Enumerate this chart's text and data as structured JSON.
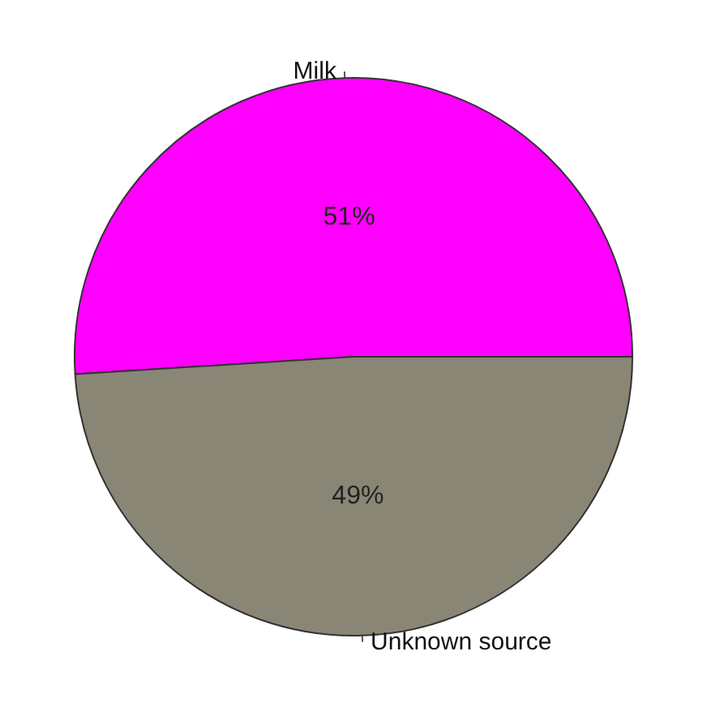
{
  "chart_data": {
    "type": "pie",
    "categories": [
      "Milk",
      "Unknown source"
    ],
    "values": [
      51,
      49
    ],
    "colors": [
      "#ff00ff",
      "#8a8676"
    ],
    "value_labels": [
      "51%",
      "49%"
    ],
    "legend": false
  }
}
